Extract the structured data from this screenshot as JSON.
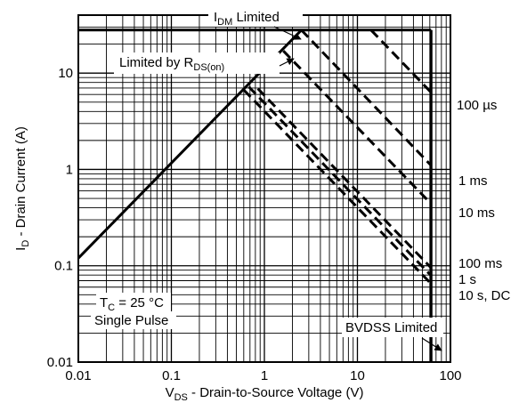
{
  "chart_data": {
    "type": "line",
    "title": "",
    "xlabel": {
      "main": "V",
      "sub": "DS",
      "rest": " - Drain-to-Source Voltage (V)"
    },
    "ylabel": {
      "main": "I",
      "sub": "D",
      "rest": " - Drain Current (A)"
    },
    "xscale": "log",
    "yscale": "log",
    "xlim": [
      0.01,
      100
    ],
    "ylim": [
      0.01,
      40
    ],
    "grid": true,
    "x_ticks": [
      {
        "value": 0.01,
        "label": "0.01"
      },
      {
        "value": 0.1,
        "label": "0.1"
      },
      {
        "value": 1,
        "label": "1"
      },
      {
        "value": 10,
        "label": "10"
      },
      {
        "value": 100,
        "label": "100"
      }
    ],
    "y_ticks": [
      {
        "value": 0.01,
        "label": "0.01"
      },
      {
        "value": 0.1,
        "label": "0.1"
      },
      {
        "value": 1,
        "label": "1"
      },
      {
        "value": 10,
        "label": "10"
      }
    ],
    "series": [
      {
        "name": "Limited by R",
        "name_sub": "DS(on)",
        "style": "solid",
        "points": [
          [
            0.01,
            0.12
          ],
          [
            2.5,
            28
          ]
        ]
      },
      {
        "name": "I",
        "name_sub": "DM",
        "name_rest": " Limited",
        "style": "solid",
        "points": [
          [
            0.01,
            28
          ],
          [
            62,
            28
          ]
        ]
      },
      {
        "name": "BVDSS Limited",
        "style": "solid",
        "points": [
          [
            62,
            28
          ],
          [
            62,
            0.01
          ]
        ]
      },
      {
        "name": "100 µs",
        "style": "dashed",
        "points": [
          [
            14,
            28
          ],
          [
            62,
            6.3
          ]
        ]
      },
      {
        "name": "1 ms",
        "style": "dashed",
        "points": [
          [
            2.5,
            28
          ],
          [
            62,
            1.1
          ]
        ]
      },
      {
        "name": "10 ms",
        "style": "dashed",
        "points": [
          [
            1.6,
            17
          ],
          [
            62,
            0.44
          ]
        ]
      },
      {
        "name": "100 ms",
        "style": "dashed",
        "points": [
          [
            0.85,
            6.9
          ],
          [
            62,
            0.095
          ]
        ]
      },
      {
        "name": "1 s",
        "style": "dashed",
        "points": [
          [
            0.68,
            7.2
          ],
          [
            62,
            0.079
          ]
        ]
      },
      {
        "name": "10 s, DC",
        "style": "dashed",
        "points": [
          [
            0.6,
            6.7
          ],
          [
            62,
            0.065
          ]
        ]
      }
    ],
    "annotations": {
      "idm": {
        "main": "I",
        "sub": "DM",
        "rest": " Limited"
      },
      "rds": {
        "main": "Limited by R",
        "sub": "DS(on)"
      },
      "tc": {
        "main": "T",
        "sub": "C",
        "rest": " = 25 °C"
      },
      "pulse": "Single Pulse",
      "bvdss": "BVDSS Limited",
      "us100": "100 µs",
      "ms1": "1 ms",
      "ms10": "10 ms",
      "ms100": "100 ms",
      "s1": "1 s",
      "s10dc": "10 s, DC"
    }
  }
}
